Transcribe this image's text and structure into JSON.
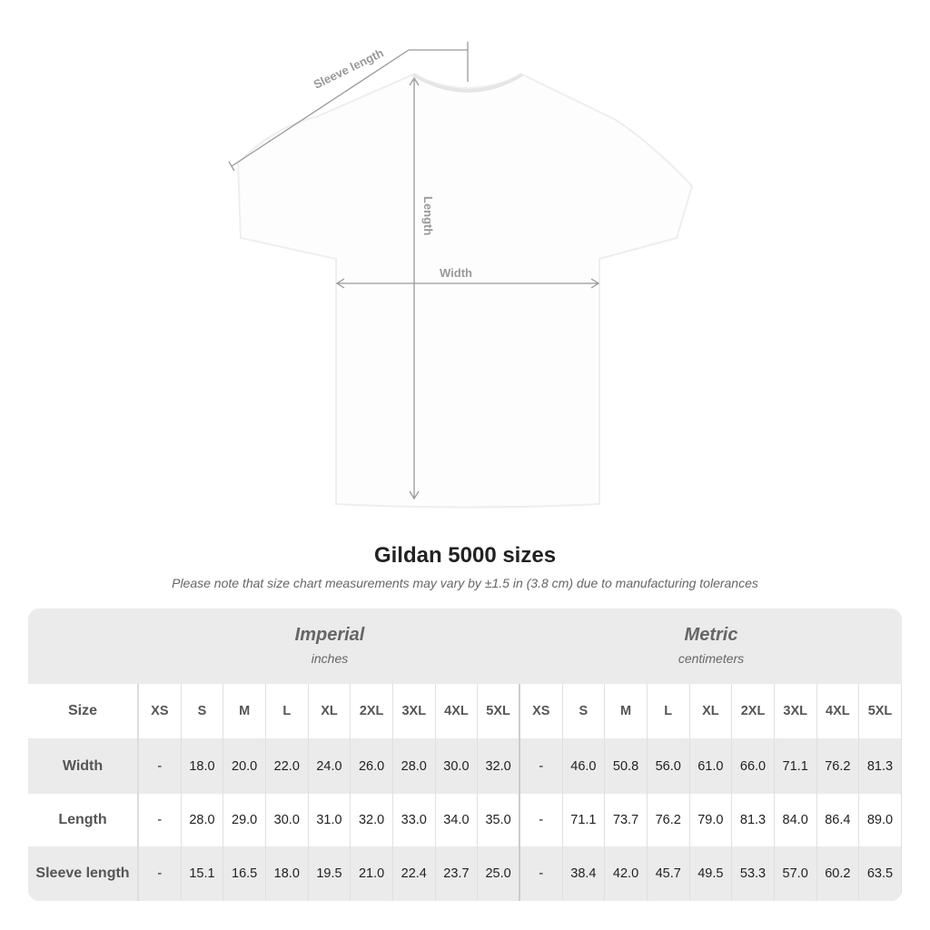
{
  "diagram": {
    "sleeve_label": "Sleeve length",
    "length_label": "Length",
    "width_label": "Width"
  },
  "title": "Gildan 5000 sizes",
  "note": "Please note that size chart measurements may vary by ±1.5 in (3.8 cm) due to manufacturing tolerances",
  "imperial": {
    "label": "Imperial",
    "unit": "inches"
  },
  "metric": {
    "label": "Metric",
    "unit": "centimeters"
  },
  "size_header": "Size",
  "sizes": [
    "XS",
    "S",
    "M",
    "L",
    "XL",
    "2XL",
    "3XL",
    "4XL",
    "5XL"
  ],
  "rows": [
    {
      "label": "Width",
      "imperial": [
        "-",
        "18.0",
        "20.0",
        "22.0",
        "24.0",
        "26.0",
        "28.0",
        "30.0",
        "32.0"
      ],
      "metric": [
        "-",
        "46.0",
        "50.8",
        "56.0",
        "61.0",
        "66.0",
        "71.1",
        "76.2",
        "81.3"
      ]
    },
    {
      "label": "Length",
      "imperial": [
        "-",
        "28.0",
        "29.0",
        "30.0",
        "31.0",
        "32.0",
        "33.0",
        "34.0",
        "35.0"
      ],
      "metric": [
        "-",
        "71.1",
        "73.7",
        "76.2",
        "79.0",
        "81.3",
        "84.0",
        "86.4",
        "89.0"
      ]
    },
    {
      "label": "Sleeve length",
      "imperial": [
        "-",
        "15.1",
        "16.5",
        "18.0",
        "19.5",
        "21.0",
        "22.4",
        "23.7",
        "25.0"
      ],
      "metric": [
        "-",
        "38.4",
        "42.0",
        "45.7",
        "49.5",
        "53.3",
        "57.0",
        "60.2",
        "63.5"
      ]
    }
  ]
}
